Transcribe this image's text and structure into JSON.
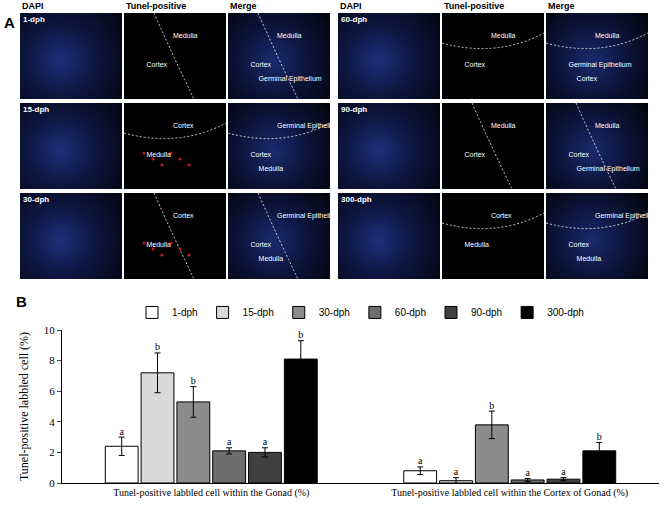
{
  "panel_a": {
    "label": "A",
    "groups": [
      {
        "headers": [
          "DAPI",
          "Tunel-positive",
          "Merge"
        ],
        "rows": [
          {
            "day": "1-dph",
            "tunel": [
              "Medulla",
              "Cortex"
            ],
            "merge": [
              "Medulla",
              "Cortex",
              "Germinal Epithelium"
            ]
          },
          {
            "day": "15-dph",
            "tunel": [
              "Cortex",
              "Medulla"
            ],
            "merge": [
              "Germinal Epithelium",
              "Cortex",
              "Medulla"
            ]
          },
          {
            "day": "30-dph",
            "tunel": [
              "Cortex",
              "Medulla"
            ],
            "merge": [
              "Germinal Epithelium",
              "Cortex",
              "Medulla"
            ]
          }
        ]
      },
      {
        "headers": [
          "DAPI",
          "Tunel-positive",
          "Merge"
        ],
        "rows": [
          {
            "day": "60-dph",
            "tunel": [
              "Medulla",
              "Cortex"
            ],
            "merge": [
              "Medulla",
              "Germinal Epithelium",
              "Cortex"
            ]
          },
          {
            "day": "90-dph",
            "tunel": [
              "Medulla",
              "Cortex"
            ],
            "merge": [
              "Medulla",
              "Cortex",
              "Germinal Epithelium"
            ]
          },
          {
            "day": "300-dph",
            "tunel": [
              "Cortex",
              "Medulla"
            ],
            "merge": [
              "Germinal Epithelium",
              "Cortex",
              "Medulla"
            ]
          }
        ]
      }
    ]
  },
  "chart_data": {
    "type": "bar",
    "panel_label": "B",
    "y_label": "Tunel-positive labbled cell (%)",
    "categories": [
      "Tunel-positive labbled cell within the Gonad (%)",
      "Tunel-positive labbled cell within the Cortex of Gonad (%)"
    ],
    "series": [
      {
        "name": "1-dph",
        "color": "#ffffff",
        "values": [
          2.4,
          0.8
        ],
        "errors": [
          0.6,
          0.25
        ],
        "letters": [
          "a",
          "a"
        ]
      },
      {
        "name": "15-dph",
        "color": "#d9d9d9",
        "values": [
          7.2,
          0.15
        ],
        "errors": [
          1.3,
          0.2
        ],
        "letters": [
          "b",
          "a"
        ]
      },
      {
        "name": "30-dph",
        "color": "#8c8c8c",
        "values": [
          5.3,
          3.8
        ],
        "errors": [
          1.0,
          0.9
        ],
        "letters": [
          "b",
          "b"
        ]
      },
      {
        "name": "60-dph",
        "color": "#6e6e6e",
        "values": [
          2.1,
          0.2
        ],
        "errors": [
          0.2,
          0.1
        ],
        "letters": [
          "a",
          "a"
        ]
      },
      {
        "name": "90-dph",
        "color": "#404040",
        "values": [
          2.0,
          0.25
        ],
        "errors": [
          0.3,
          0.1
        ],
        "letters": [
          "a",
          "a"
        ]
      },
      {
        "name": "300-dph",
        "color": "#000000",
        "values": [
          8.1,
          2.1
        ],
        "errors": [
          1.2,
          0.55
        ],
        "letters": [
          "b",
          "b"
        ]
      }
    ],
    "ylim": [
      0,
      10
    ],
    "yticks": [
      0,
      2,
      4,
      6,
      8,
      10
    ],
    "grid": false,
    "legend": "top"
  }
}
